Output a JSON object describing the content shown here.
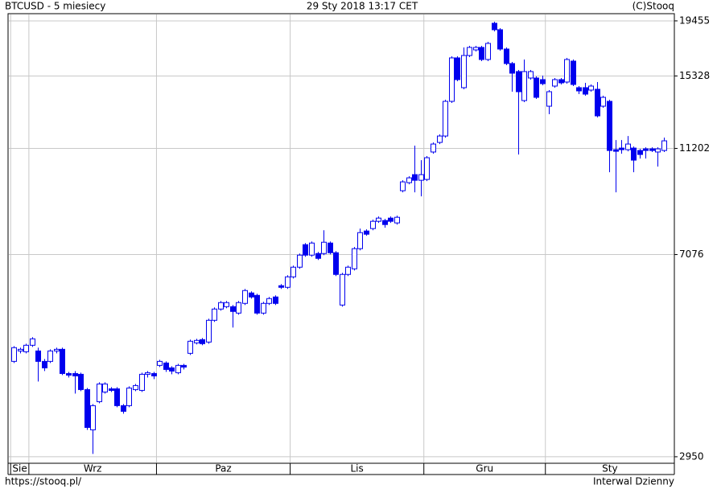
{
  "chart_data": {
    "type": "candlestick",
    "title": "BTCUSD - 5 miesiecy",
    "date": "29 Sty 2018 13:17 CET",
    "source": "(C)Stooq",
    "footer_left": "https://stooq.pl/",
    "footer_right": "Interwal Dzienny",
    "ylog": true,
    "grid": true,
    "up_color": "#ffffff",
    "down_color": "#0000ee",
    "line_color": "#0000ee",
    "ylim": [
      2868,
      20070
    ],
    "yticks": [
      2950,
      7076,
      11202,
      15328,
      19455
    ],
    "xticks": [
      {
        "value": 0,
        "label": "Sie"
      },
      {
        "value": 3,
        "label": "Wrz"
      },
      {
        "value": 24,
        "label": "Paz"
      },
      {
        "value": 46,
        "label": "Lis"
      },
      {
        "value": 68,
        "label": "Gru"
      },
      {
        "value": 88,
        "label": "Sty"
      }
    ],
    "open": [
      4457,
      4663,
      4647,
      4779,
      4663,
      4457,
      4457,
      4663,
      4696,
      4229,
      4229,
      4215,
      3945,
      3314,
      3744,
      3904,
      3958,
      3958,
      3680,
      3680,
      3945,
      3931,
      4215,
      4229,
      4380,
      4426,
      4334,
      4244,
      4380,
      4615,
      4829,
      4897,
      4846,
      5324,
      5590,
      5648,
      5648,
      5493,
      5728,
      5993,
      5931,
      5493,
      5728,
      5890,
      6184,
      6141,
      6426,
      6700,
      7386,
      7059,
      7108,
      7108,
      7438,
      7133,
      5688,
      6493,
      6653,
      7259,
      7836,
      7919,
      8172,
      8200,
      8286,
      8115,
      9329,
      9659,
      10001,
      9760,
      9795,
      11030,
      11497,
      11821,
      13733,
      16574,
      14571,
      16748,
      17159,
      17342,
      16460,
      19254,
      18724,
      17221,
      16175,
      15622,
      13780,
      15192,
      15192,
      15087,
      13448,
      14672,
      15087,
      14930,
      16345,
      14571,
      14571,
      14419,
      14469,
      13448,
      13733,
      11142,
      11219,
      11142,
      11219,
      11103,
      11181,
      11181,
      11030,
      11103
    ],
    "high": [
      4762,
      4730,
      4812,
      4948,
      4730,
      4504,
      4696,
      4730,
      4730,
      4259,
      4274,
      4244,
      3972,
      3705,
      4070,
      4070,
      3986,
      3986,
      3705,
      4000,
      4042,
      4244,
      4274,
      4259,
      4488,
      4457,
      4365,
      4411,
      4411,
      4897,
      4914,
      4931,
      5361,
      5629,
      5788,
      5788,
      5688,
      5788,
      6098,
      6035,
      5972,
      5768,
      5890,
      5931,
      6228,
      6470,
      6746,
      7108,
      7438,
      7490,
      7158,
      7864,
      7490,
      7183,
      6538,
      6746,
      7310,
      7919,
      7892,
      8229,
      8344,
      8257,
      8344,
      8373,
      9760,
      9933,
      11338,
      10649,
      10837,
      11497,
      11904,
      13829,
      16690,
      16690,
      17342,
      17463,
      17463,
      17463,
      17771,
      19387,
      18854,
      17342,
      16288,
      15732,
      16460,
      15732,
      15298,
      15352,
      14419,
      15192,
      15192,
      16574,
      16460,
      14672,
      14878,
      14775,
      14930,
      14072,
      13829,
      11618,
      11618,
      11821,
      11299,
      11181,
      11259,
      11259,
      11259,
      11740
    ],
    "low": [
      4426,
      4615,
      4615,
      4745,
      4085,
      4274,
      4426,
      4615,
      4200,
      4157,
      3877,
      3918,
      3314,
      2986,
      3718,
      3877,
      3904,
      3654,
      3554,
      3654,
      3918,
      3904,
      4157,
      4128,
      4349,
      4259,
      4215,
      4215,
      4304,
      4583,
      4796,
      4779,
      4812,
      5287,
      5551,
      5610,
      5159,
      5455,
      5688,
      5849,
      5455,
      5455,
      5688,
      5688,
      6098,
      6098,
      6381,
      6653,
      7010,
      7010,
      6913,
      7059,
      7084,
      6448,
      5648,
      6448,
      6607,
      7208,
      7675,
      7864,
      8115,
      7947,
      8115,
      8058,
      9264,
      9592,
      9264,
      9103,
      9726,
      10950,
      11417,
      11740,
      13638,
      14982,
      14469,
      16632,
      17041,
      16345,
      16345,
      18594,
      17101,
      16063,
      14318,
      10912,
      13685,
      15087,
      13878,
      14723,
      12987,
      14571,
      14775,
      14826,
      14672,
      14170,
      14072,
      14318,
      12808,
      13355,
      10107,
      9264,
      10950,
      11064,
      10107,
      10724,
      10724,
      11030,
      10357,
      11030
    ],
    "close": [
      4730,
      4696,
      4779,
      4914,
      4457,
      4334,
      4663,
      4696,
      4229,
      4200,
      4186,
      3945,
      3349,
      3680,
      4042,
      4042,
      3931,
      3680,
      3591,
      3972,
      4014,
      4215,
      4244,
      4186,
      4457,
      4304,
      4274,
      4380,
      4349,
      4863,
      4880,
      4812,
      5324,
      5590,
      5748,
      5748,
      5532,
      5748,
      6056,
      5890,
      5493,
      5728,
      5849,
      5728,
      6141,
      6426,
      6700,
      7059,
      7059,
      7438,
      6961,
      7464,
      7133,
      6493,
      6493,
      6700,
      7259,
      7782,
      7728,
      8172,
      8286,
      8058,
      8172,
      8315,
      9693,
      9863,
      9760,
      10001,
      10761,
      11417,
      11821,
      13733,
      16574,
      15087,
      16748,
      17342,
      17342,
      16460,
      17647,
      18724,
      17221,
      16175,
      15513,
      14318,
      15622,
      15622,
      13974,
      14826,
      14318,
      15087,
      14878,
      16460,
      14775,
      14369,
      14170,
      14672,
      12898,
      13974,
      11103,
      11064,
      11142,
      11417,
      10649,
      10912,
      11103,
      11103,
      11181,
      11577
    ]
  }
}
